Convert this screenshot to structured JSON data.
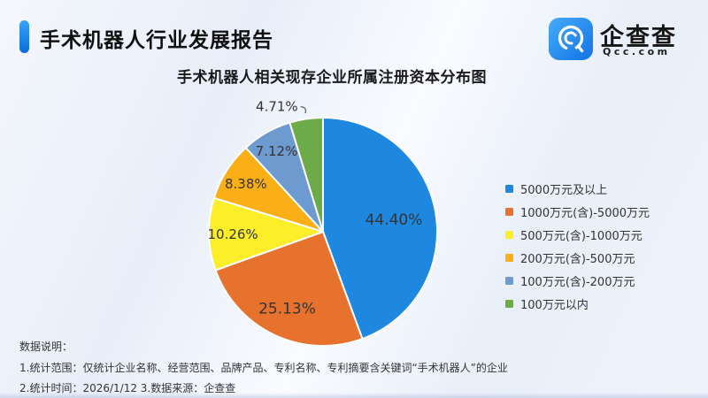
{
  "header": {
    "report_title": "手术机器人行业发展报告",
    "logo": {
      "name": "企查查",
      "domain": "Qcc.com"
    }
  },
  "chart_data": {
    "type": "pie",
    "title": "手术机器人相关现存企业所属注册资本分布图",
    "unit": "percent",
    "direction": "clockwise",
    "start_angle_deg": 0,
    "legend_position": "right",
    "slices": [
      {
        "label": "5000万元及以上",
        "value": 44.4,
        "display": "44.40%",
        "color": "#1e88e0"
      },
      {
        "label": "1000万元(含)-5000万元",
        "value": 25.13,
        "display": "25.13%",
        "color": "#e7722d"
      },
      {
        "label": "500万元(含)-1000万元",
        "value": 10.26,
        "display": "10.26%",
        "color": "#fcee28"
      },
      {
        "label": "200万元(含)-500万元",
        "value": 8.38,
        "display": "8.38%",
        "color": "#fbaf17"
      },
      {
        "label": "100万元(含)-200万元",
        "value": 7.12,
        "display": "7.12%",
        "color": "#6d9bcf"
      },
      {
        "label": "100万元以内",
        "value": 4.71,
        "display": "4.71%",
        "color": "#6cab48"
      }
    ]
  },
  "notes": {
    "heading": "数据说明：",
    "line1": "1.统计范围：仅统计企业名称、经营范围、品牌产品、专利名称、专利摘要含关键词“手术机器人”的企业",
    "line2": "2.统计时间：2026/1/12 3.数据来源：企查查"
  },
  "colors": {
    "accent_blue": "#1273e6",
    "title_text": "#101010",
    "label_text": "#333333",
    "background_tint": "#e9eff9"
  }
}
